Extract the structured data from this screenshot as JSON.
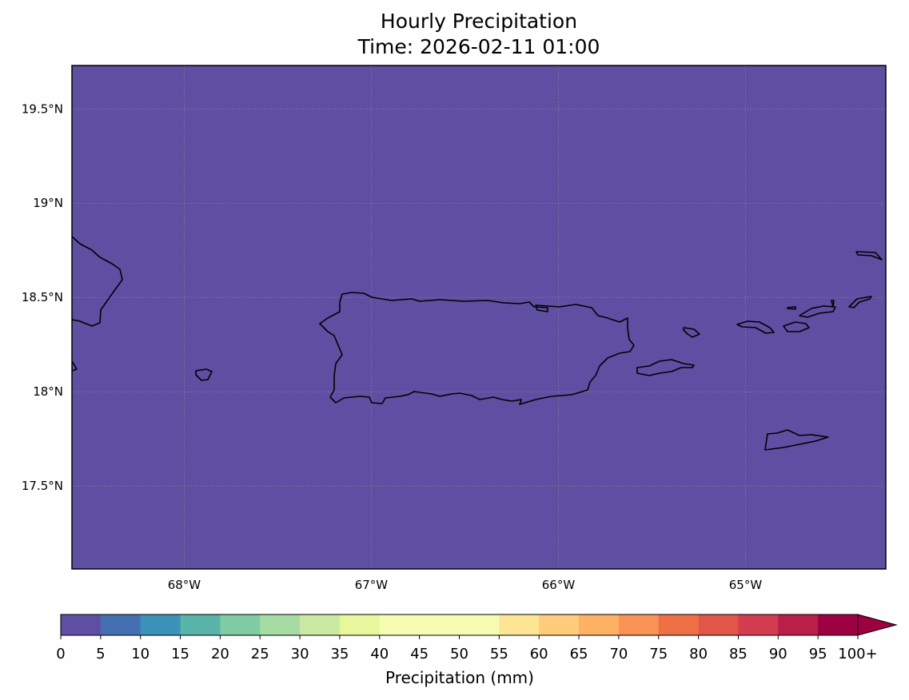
{
  "title": "Hourly Precipitation",
  "subtitle": "Time: 2026-02-11 01:00",
  "map": {
    "fill_color": "#5e4fa2",
    "lon_range": [
      -68.6,
      -64.25
    ],
    "lat_range": [
      17.06,
      19.73
    ],
    "lon_ticks": [
      {
        "value": -68,
        "label": "68°W"
      },
      {
        "value": -67,
        "label": "67°W"
      },
      {
        "value": -66,
        "label": "66°W"
      },
      {
        "value": -65,
        "label": "65°W"
      }
    ],
    "lat_ticks": [
      {
        "value": 19.5,
        "label": "19.5°N"
      },
      {
        "value": 19,
        "label": "19°N"
      },
      {
        "value": 18.5,
        "label": "18.5°N"
      },
      {
        "value": 18,
        "label": "18°N"
      },
      {
        "value": 17.5,
        "label": "17.5°N"
      }
    ],
    "gridlines": true
  },
  "colorbar": {
    "label": "Precipitation (mm)",
    "bounds": [
      0,
      5,
      10,
      15,
      20,
      25,
      30,
      35,
      40,
      45,
      50,
      55,
      60,
      65,
      70,
      75,
      80,
      85,
      90,
      95,
      100
    ],
    "tick_labels": [
      "0",
      "5",
      "10",
      "15",
      "20",
      "25",
      "30",
      "35",
      "40",
      "45",
      "50",
      "55",
      "60",
      "65",
      "70",
      "75",
      "80",
      "85",
      "90",
      "95",
      "100+"
    ],
    "colors": [
      "#5e4fa2",
      "#4470b1",
      "#3b92b8",
      "#59b4aa",
      "#7ecba4",
      "#a6dba4",
      "#cae9a3",
      "#e8f69c",
      "#f7fcb3",
      "#f7fcb3",
      "#f7fcb3",
      "#fee593",
      "#fecc7b",
      "#fdb163",
      "#f99355",
      "#f07046",
      "#e15649",
      "#d43d4f",
      "#b91f48",
      "#9e0142"
    ],
    "extend": "max"
  }
}
